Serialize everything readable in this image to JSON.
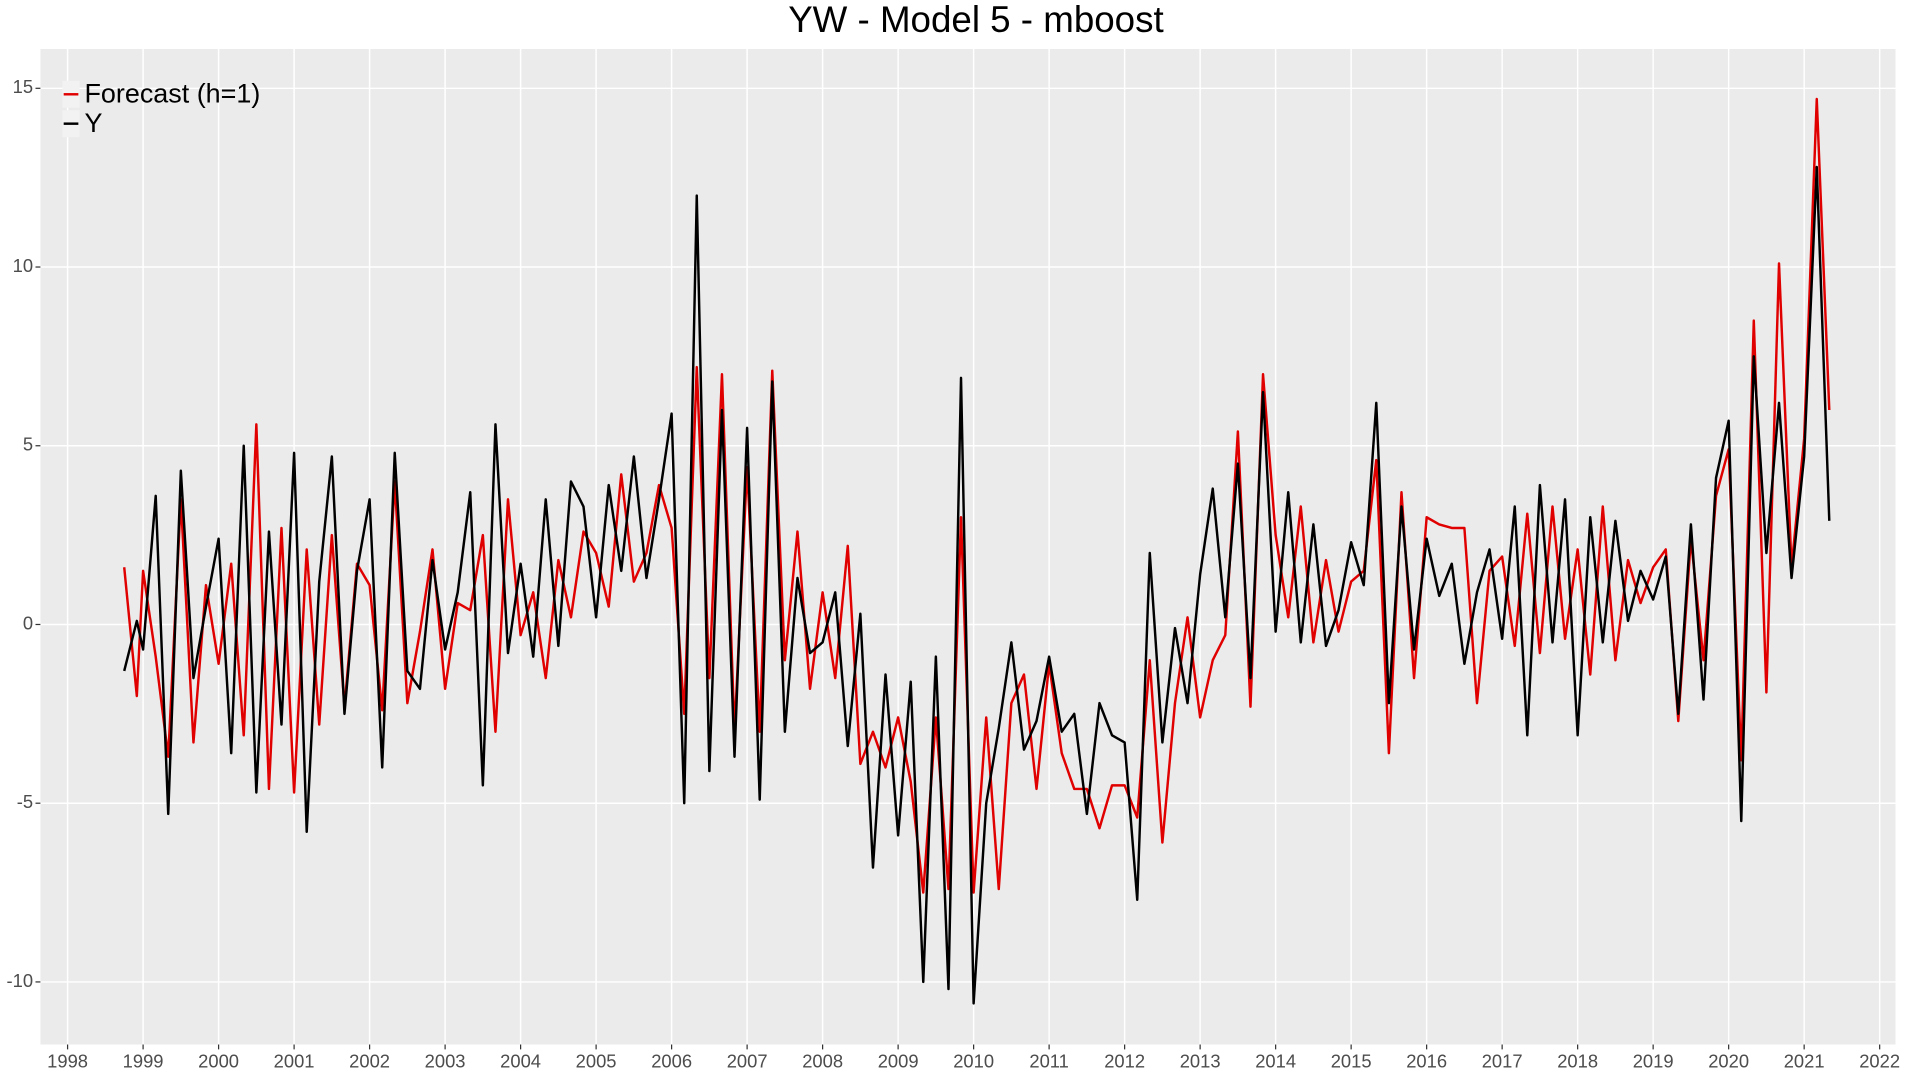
{
  "chart_data": {
    "type": "line",
    "title": "YW - Model 5 - mboost",
    "x": [
      1998.75,
      1998.917,
      1999,
      1999.167,
      1999.333,
      1999.5,
      1999.667,
      1999.833,
      2000,
      2000.167,
      2000.333,
      2000.5,
      2000.667,
      2000.833,
      2001,
      2001.167,
      2001.333,
      2001.5,
      2001.667,
      2001.833,
      2002,
      2002.167,
      2002.333,
      2002.5,
      2002.667,
      2002.833,
      2003,
      2003.167,
      2003.333,
      2003.5,
      2003.667,
      2003.833,
      2004,
      2004.167,
      2004.333,
      2004.5,
      2004.667,
      2004.833,
      2005,
      2005.167,
      2005.333,
      2005.5,
      2005.667,
      2005.833,
      2006,
      2006.167,
      2006.333,
      2006.5,
      2006.667,
      2006.833,
      2007,
      2007.167,
      2007.333,
      2007.5,
      2007.667,
      2007.833,
      2008,
      2008.167,
      2008.333,
      2008.5,
      2008.667,
      2008.833,
      2009,
      2009.167,
      2009.333,
      2009.5,
      2009.667,
      2009.833,
      2010,
      2010.167,
      2010.333,
      2010.5,
      2010.667,
      2010.833,
      2011,
      2011.167,
      2011.333,
      2011.5,
      2011.667,
      2011.833,
      2012,
      2012.167,
      2012.333,
      2012.5,
      2012.667,
      2012.833,
      2013,
      2013.167,
      2013.333,
      2013.5,
      2013.667,
      2013.833,
      2014,
      2014.167,
      2014.333,
      2014.5,
      2014.667,
      2014.833,
      2015,
      2015.167,
      2015.333,
      2015.5,
      2015.667,
      2015.833,
      2016,
      2016.167,
      2016.333,
      2016.5,
      2016.667,
      2016.833,
      2017,
      2017.167,
      2017.333,
      2017.5,
      2017.667,
      2017.833,
      2018,
      2018.167,
      2018.333,
      2018.5,
      2018.667,
      2018.833,
      2019,
      2019.167,
      2019.333,
      2019.5,
      2019.667,
      2019.833,
      2020,
      2020.167,
      2020.333,
      2020.5,
      2020.667,
      2020.833,
      2021,
      2021.167,
      2021.333
    ],
    "series": [
      {
        "name": "Forecast (h=1)",
        "color": "#e00000",
        "values": [
          1.6,
          -2,
          1.5,
          -0.9,
          -3.7,
          3.5,
          -3.3,
          1.1,
          -1.1,
          1.7,
          -3.1,
          5.6,
          -4.6,
          2.7,
          -4.7,
          2.1,
          -2.8,
          2.5,
          -2.3,
          1.7,
          1.1,
          -2.4,
          4.0,
          -2.2,
          -0.2,
          2.1,
          -1.8,
          0.6,
          0.4,
          2.5,
          -3.0,
          3.5,
          -0.3,
          0.9,
          -1.5,
          1.8,
          0.2,
          2.6,
          2.0,
          0.5,
          4.2,
          1.2,
          2.0,
          3.9,
          2.7,
          -2.5,
          7.2,
          -1.5,
          7.0,
          -3.0,
          4.4,
          -3.0,
          7.1,
          -1.0,
          2.6,
          -1.8,
          0.9,
          -1.5,
          2.2,
          -3.9,
          -3.0,
          -4.0,
          -2.6,
          -4.4,
          -7.5,
          -2.6,
          -7.4,
          3.0,
          -7.5,
          -2.6,
          -7.4,
          -2.2,
          -1.4,
          -4.6,
          -1.1,
          -3.6,
          -4.6,
          -4.6,
          -5.7,
          -4.5,
          -4.5,
          -5.4,
          -1.0,
          -6.1,
          -2.2,
          0.2,
          -2.6,
          -1.0,
          -0.3,
          5.4,
          -2.3,
          7.0,
          2.5,
          0.2,
          3.3,
          -0.5,
          1.8,
          -0.2,
          1.2,
          1.5,
          4.6,
          -3.6,
          3.7,
          -1.5,
          3.0,
          2.8,
          2.7,
          2.7,
          -2.2,
          1.5,
          1.9,
          -0.6,
          3.1,
          -0.8,
          3.3,
          -0.4,
          2.1,
          -1.4,
          3.3,
          -1.0,
          1.8,
          0.6,
          1.6,
          2.1,
          -2.7,
          2.4,
          -1.0,
          3.6,
          4.9,
          -3.8,
          8.5,
          -1.9,
          10.1,
          1.6,
          5.2,
          14.7,
          6.0
        ]
      },
      {
        "name": "Y",
        "color": "#000000",
        "values": [
          -1.3,
          0.1,
          -0.7,
          3.6,
          -5.3,
          4.3,
          -1.5,
          0.5,
          2.4,
          -3.6,
          5.0,
          -4.7,
          2.6,
          -2.8,
          4.8,
          -5.8,
          1.2,
          4.7,
          -2.5,
          1.5,
          3.5,
          -4.0,
          4.8,
          -1.3,
          -1.8,
          1.8,
          -0.7,
          0.9,
          3.7,
          -4.5,
          5.6,
          -0.8,
          1.7,
          -0.9,
          3.5,
          -0.6,
          4.0,
          3.3,
          0.2,
          3.9,
          1.5,
          4.7,
          1.3,
          3.5,
          5.9,
          -5.0,
          12.0,
          -4.1,
          6.0,
          -3.7,
          5.5,
          -4.9,
          6.8,
          -3.0,
          1.3,
          -0.8,
          -0.5,
          0.9,
          -3.4,
          0.3,
          -6.8,
          -1.4,
          -5.9,
          -1.6,
          -10.0,
          -0.9,
          -10.2,
          6.9,
          -10.6,
          -5.0,
          -2.9,
          -0.5,
          -3.5,
          -2.7,
          -0.9,
          -3.0,
          -2.5,
          -5.3,
          -2.2,
          -3.1,
          -3.3,
          -7.7,
          2.0,
          -3.3,
          -0.1,
          -2.2,
          1.4,
          3.8,
          0.2,
          4.5,
          -1.5,
          6.5,
          -0.2,
          3.7,
          -0.5,
          2.8,
          -0.6,
          0.4,
          2.3,
          1.1,
          6.2,
          -2.2,
          3.3,
          -0.7,
          2.4,
          0.8,
          1.7,
          -1.1,
          0.9,
          2.1,
          -0.4,
          3.3,
          -3.1,
          3.9,
          -0.5,
          3.5,
          -3.1,
          3.0,
          -0.5,
          2.9,
          0.1,
          1.5,
          0.7,
          1.9,
          -2.5,
          2.8,
          -2.1,
          4.1,
          5.7,
          -5.5,
          7.5,
          2.0,
          6.2,
          1.3,
          4.7,
          12.8,
          2.9
        ]
      }
    ],
    "xlim": [
      1997.64,
      2022.21
    ],
    "xticks": [
      1998,
      1999,
      2000,
      2001,
      2002,
      2003,
      2004,
      2005,
      2006,
      2007,
      2008,
      2009,
      2010,
      2011,
      2012,
      2013,
      2014,
      2015,
      2016,
      2017,
      2018,
      2019,
      2020,
      2021,
      2022
    ],
    "ylim": [
      -11.75,
      16.1
    ],
    "yticks": [
      -10,
      -5,
      0,
      5,
      10,
      15
    ],
    "grid": true,
    "legend": "top-left"
  }
}
